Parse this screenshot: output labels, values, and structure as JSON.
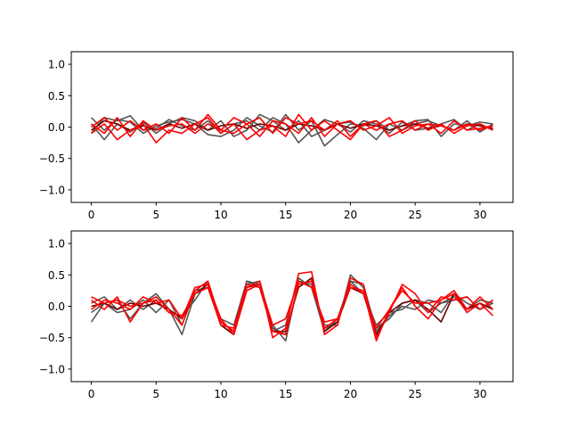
{
  "colors": {
    "gray": "#555555",
    "red": "#ff0000",
    "darkred": "#6a0000"
  },
  "chart_data": [
    {
      "type": "line",
      "xlim": [
        -1.55,
        32.55
      ],
      "ylim": [
        -1.2,
        1.2
      ],
      "xticks": [
        0,
        5,
        10,
        15,
        20,
        25,
        30
      ],
      "yticks": [
        -1.0,
        -0.5,
        0.0,
        0.5,
        1.0
      ],
      "xtick_labels": [
        "0",
        "5",
        "10",
        "15",
        "20",
        "25",
        "30"
      ],
      "ytick_labels": [
        "−1.0",
        "−0.5",
        "0.0",
        "0.5",
        "1.0"
      ],
      "grid": false,
      "series": [
        {
          "color": "gray",
          "values": [
            0.15,
            -0.05,
            0.12,
            0.08,
            -0.1,
            0.02,
            0.08,
            0.12,
            0.05,
            -0.12,
            -0.15,
            -0.05,
            0.15,
            0.02,
            -0.08,
            0.2,
            -0.05,
            0.1,
            -0.3,
            -0.12,
            0.05,
            0.02,
            0.1,
            -0.05,
            0.02,
            0.1,
            0.12,
            -0.15,
            0.05,
            0.02,
            0.08,
            0.05
          ]
        },
        {
          "color": "gray",
          "values": [
            -0.1,
            0.15,
            0.1,
            0.18,
            -0.05,
            -0.02,
            0.12,
            0.02,
            -0.05,
            0.1,
            -0.1,
            0.05,
            0.1,
            -0.05,
            0.15,
            0.05,
            -0.25,
            -0.05,
            0.12,
            0.05,
            0.08,
            -0.02,
            -0.2,
            0.05,
            -0.05,
            0.05,
            0.1,
            0.02,
            -0.05,
            0.1,
            -0.08,
            0.05
          ]
        },
        {
          "color": "gray",
          "values": [
            0.05,
            -0.2,
            0.05,
            -0.08,
            0.08,
            -0.1,
            0.05,
            0.15,
            0.1,
            -0.05,
            0.1,
            -0.15,
            -0.05,
            0.2,
            0.1,
            -0.05,
            0.1,
            -0.15,
            -0.05,
            0.05,
            -0.08,
            0.1,
            0.05,
            -0.1,
            0.08,
            -0.05,
            -0.02,
            0.05,
            0.12,
            -0.05,
            0.05,
            -0.05
          ]
        },
        {
          "color": "darkred",
          "values": [
            -0.05,
            0.1,
            0.05,
            -0.05,
            0.02,
            -0.05,
            0.05,
            -0.02,
            0.05,
            -0.05,
            0.02,
            0.05,
            -0.02,
            0.05,
            0.02,
            -0.05,
            0.05,
            0.02,
            -0.05,
            0.05,
            -0.02,
            0.05,
            0.02,
            -0.05,
            0.02,
            0.05,
            -0.02,
            0.02,
            -0.05,
            0.05,
            0.02,
            -0.02
          ]
        },
        {
          "color": "red",
          "values": [
            -0.1,
            0.05,
            -0.2,
            -0.05,
            0.05,
            -0.25,
            -0.05,
            -0.1,
            0.05,
            0.15,
            -0.1,
            0.05,
            -0.2,
            -0.05,
            0.02,
            -0.15,
            0.2,
            -0.05,
            0.1,
            -0.05,
            -0.2,
            0.05,
            0.1,
            -0.15,
            -0.05,
            0.1,
            -0.05,
            0.05,
            -0.1,
            0.02,
            0.05,
            -0.05
          ]
        },
        {
          "color": "red",
          "values": [
            0.05,
            -0.1,
            0.15,
            -0.15,
            0.1,
            -0.05,
            0.02,
            0.05,
            -0.1,
            0.05,
            -0.05,
            0.15,
            0.05,
            -0.15,
            0.1,
            0.05,
            -0.1,
            0.15,
            -0.15,
            0.05,
            0.1,
            -0.05,
            0.02,
            0.15,
            -0.1,
            0.02,
            0.05,
            -0.1,
            0.1,
            -0.05,
            -0.02,
            0.02
          ]
        },
        {
          "color": "red",
          "values": [
            0.0,
            0.15,
            -0.05,
            0.1,
            -0.05,
            0.05,
            -0.1,
            0.15,
            -0.05,
            0.2,
            -0.05,
            -0.1,
            0.05,
            0.15,
            -0.1,
            0.15,
            0.05,
            0.1,
            -0.05,
            0.1,
            -0.15,
            0.05,
            -0.05,
            0.05,
            0.1,
            -0.05,
            0.05,
            0.02,
            -0.05,
            0.05,
            -0.05,
            0.02
          ]
        }
      ]
    },
    {
      "type": "line",
      "xlim": [
        -1.55,
        32.55
      ],
      "ylim": [
        -1.2,
        1.2
      ],
      "xticks": [
        0,
        5,
        10,
        15,
        20,
        25,
        30
      ],
      "yticks": [
        -1.0,
        -0.5,
        0.0,
        0.5,
        1.0
      ],
      "xtick_labels": [
        "0",
        "5",
        "10",
        "15",
        "20",
        "25",
        "30"
      ],
      "ytick_labels": [
        "−1.0",
        "−0.5",
        "0.0",
        "0.5",
        "1.0"
      ],
      "grid": false,
      "series": [
        {
          "color": "gray",
          "values": [
            -0.25,
            0.05,
            0.1,
            -0.2,
            0.05,
            0.2,
            -0.05,
            -0.45,
            0.2,
            0.3,
            -0.2,
            -0.3,
            0.4,
            0.35,
            -0.3,
            -0.55,
            0.4,
            0.35,
            -0.3,
            -0.3,
            0.5,
            0.3,
            -0.35,
            -0.2,
            0.05,
            0.1,
            -0.1,
            0.05,
            0.1,
            0.15,
            -0.05,
            0.05
          ]
        },
        {
          "color": "gray",
          "values": [
            0.05,
            0.15,
            -0.05,
            0.1,
            -0.05,
            0.1,
            -0.1,
            -0.15,
            0.1,
            0.4,
            -0.25,
            -0.4,
            0.4,
            0.3,
            -0.4,
            -0.3,
            0.45,
            0.3,
            -0.4,
            -0.2,
            0.4,
            0.2,
            -0.3,
            -0.1,
            -0.05,
            0.1,
            0.05,
            -0.1,
            0.2,
            0.05,
            -0.05,
            0.1
          ]
        },
        {
          "color": "gray",
          "values": [
            -0.1,
            0.05,
            -0.1,
            -0.05,
            0.1,
            -0.1,
            0.1,
            -0.3,
            0.25,
            0.3,
            -0.3,
            -0.45,
            0.35,
            0.4,
            -0.35,
            -0.45,
            0.35,
            0.4,
            -0.35,
            -0.25,
            0.4,
            0.35,
            -0.4,
            -0.15,
            0.0,
            -0.05,
            0.1,
            0.05,
            0.15,
            -0.05,
            0.1,
            0.05
          ]
        },
        {
          "color": "darkred",
          "values": [
            0.0,
            0.05,
            -0.05,
            0.05,
            0.0,
            0.05,
            -0.05,
            -0.2,
            0.2,
            0.35,
            -0.3,
            -0.45,
            0.3,
            0.35,
            -0.4,
            -0.4,
            0.3,
            0.45,
            -0.4,
            -0.25,
            0.3,
            0.2,
            -0.45,
            -0.1,
            0.05,
            0.1,
            -0.05,
            -0.25,
            0.2,
            -0.05,
            0.05,
            -0.05
          ]
        },
        {
          "color": "red",
          "values": [
            0.1,
            -0.05,
            0.15,
            -0.25,
            0.05,
            0.15,
            -0.05,
            -0.3,
            0.25,
            0.4,
            -0.25,
            -0.4,
            0.3,
            0.4,
            -0.5,
            -0.35,
            0.52,
            0.55,
            -0.45,
            -0.3,
            0.45,
            0.35,
            -0.5,
            -0.1,
            0.35,
            0.2,
            -0.1,
            0.15,
            0.1,
            0.15,
            -0.05,
            0.1
          ]
        },
        {
          "color": "red",
          "values": [
            -0.05,
            0.1,
            0.05,
            -0.05,
            0.15,
            0.05,
            0.1,
            -0.2,
            0.3,
            0.35,
            -0.2,
            -0.45,
            0.25,
            0.35,
            -0.3,
            -0.2,
            0.4,
            0.3,
            -0.25,
            -0.2,
            0.35,
            0.2,
            -0.35,
            -0.05,
            0.25,
            0.05,
            0.05,
            0.1,
            0.2,
            -0.1,
            0.05,
            -0.15
          ]
        },
        {
          "color": "red",
          "values": [
            0.15,
            0.05,
            0.1,
            0.0,
            0.05,
            0.1,
            -0.1,
            -0.15,
            0.2,
            0.3,
            -0.3,
            -0.35,
            0.35,
            0.3,
            -0.4,
            -0.45,
            0.35,
            0.4,
            -0.35,
            -0.2,
            0.3,
            0.25,
            -0.55,
            -0.05,
            0.3,
            0.0,
            -0.2,
            0.1,
            0.25,
            -0.05,
            0.15,
            -0.05
          ]
        }
      ]
    }
  ]
}
